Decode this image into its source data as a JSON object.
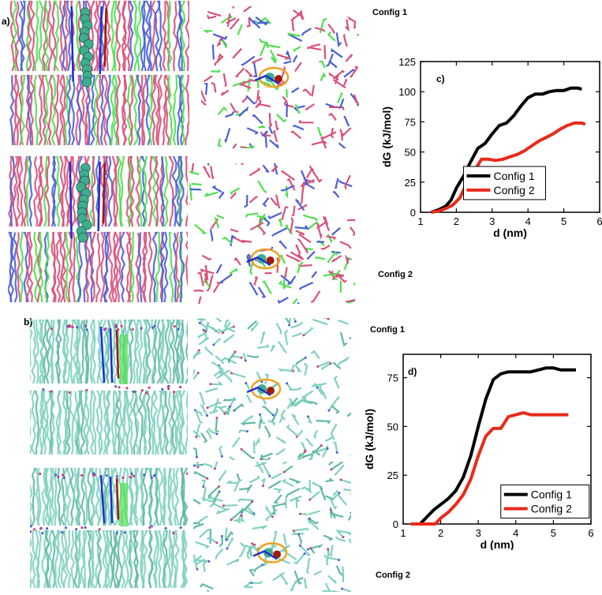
{
  "figure": {
    "panel_labels": [
      "a)",
      "b)"
    ],
    "config_labels": {
      "a_top": "Config 1",
      "a_bottom": "Config 2",
      "b_top": "Config 1",
      "b_bottom": "Config 2"
    },
    "snapshot_colors": {
      "lipid_pink": "#d9507a",
      "lipid_blue": "#4a5fd6",
      "lipid_green": "#4ee04e",
      "lipid_teal": "#7fd1bf",
      "peptide_red": "#a01a0a",
      "peptide_blue": "#1a2fd0",
      "bead_teal": "#3fae8f",
      "ring_orange": "#f0a020"
    }
  },
  "chart_data": [
    {
      "type": "line",
      "panel_label": "c)",
      "xlabel": "d (nm)",
      "ylabel": "dG (kJ/mol)",
      "xlim": [
        1,
        6
      ],
      "ylim": [
        0,
        125
      ],
      "x_ticks": [
        1,
        2,
        3,
        4,
        5,
        6
      ],
      "y_ticks": [
        0,
        25,
        50,
        75,
        100,
        125
      ],
      "legend_position": "bottom-center",
      "series": [
        {
          "name": "Config 1",
          "color": "#000000",
          "x": [
            1.3,
            1.5,
            1.7,
            1.85,
            2.0,
            2.2,
            2.4,
            2.6,
            2.8,
            3.0,
            3.2,
            3.4,
            3.6,
            3.8,
            4.0,
            4.2,
            4.4,
            4.6,
            4.8,
            5.0,
            5.2,
            5.4,
            5.5
          ],
          "y": [
            0,
            2,
            5,
            10,
            20,
            30,
            42,
            53,
            57,
            65,
            72,
            74,
            80,
            88,
            95,
            98,
            98,
            100,
            101,
            101,
            103,
            103,
            102
          ]
        },
        {
          "name": "Config 2",
          "color": "#e82a1a",
          "x": [
            1.3,
            1.5,
            1.7,
            1.9,
            2.1,
            2.3,
            2.5,
            2.7,
            2.9,
            3.1,
            3.3,
            3.5,
            3.7,
            3.9,
            4.1,
            4.3,
            4.5,
            4.7,
            4.9,
            5.1,
            5.3,
            5.5,
            5.6
          ],
          "y": [
            0,
            1,
            3,
            6,
            12,
            25,
            34,
            44,
            44,
            43,
            44,
            46,
            48,
            51,
            55,
            59,
            62,
            65,
            69,
            72,
            74,
            74,
            73
          ]
        }
      ]
    },
    {
      "type": "line",
      "panel_label": "d)",
      "xlabel": "d (nm)",
      "ylabel": "dG (kJ/mol)",
      "xlim": [
        1,
        6
      ],
      "ylim": [
        0,
        87
      ],
      "x_ticks": [
        1,
        2,
        3,
        4,
        5,
        6
      ],
      "y_ticks": [
        0,
        25,
        50,
        75
      ],
      "legend_position": "bottom-right",
      "series": [
        {
          "name": "Config 1",
          "color": "#000000",
          "x": [
            1.45,
            1.6,
            1.8,
            2.0,
            2.2,
            2.4,
            2.6,
            2.8,
            3.0,
            3.2,
            3.4,
            3.6,
            3.8,
            4.0,
            4.2,
            4.4,
            4.6,
            4.8,
            5.0,
            5.2,
            5.4,
            5.6
          ],
          "y": [
            0,
            3,
            7,
            10,
            13,
            17,
            24,
            35,
            50,
            64,
            74,
            77,
            78,
            78,
            78,
            78,
            79,
            80,
            80,
            79,
            79,
            79
          ]
        },
        {
          "name": "Config 2",
          "color": "#e82a1a",
          "x": [
            1.2,
            1.3,
            1.85,
            2.0,
            2.2,
            2.4,
            2.6,
            2.8,
            3.0,
            3.2,
            3.4,
            3.6,
            3.8,
            4.0,
            4.2,
            4.4,
            4.6,
            4.8,
            5.0,
            5.2,
            5.4
          ],
          "y": [
            0,
            0,
            0,
            3,
            6,
            10,
            15,
            23,
            35,
            45,
            49,
            49,
            55,
            56,
            57,
            56,
            56,
            56,
            56,
            56,
            56
          ]
        }
      ]
    }
  ]
}
